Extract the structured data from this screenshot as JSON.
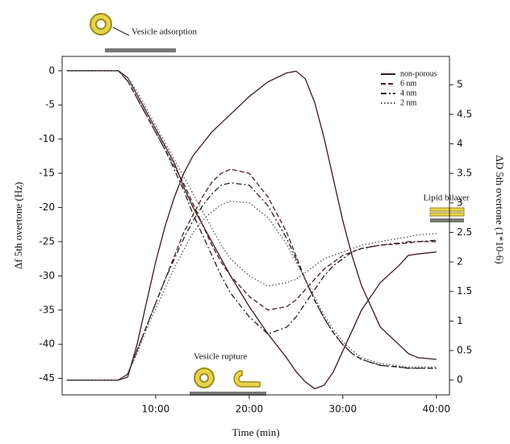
{
  "chart_data": {
    "type": "line",
    "xlabel": "Time (min)",
    "ylabel": "Δf 5th overtone (Hz)",
    "y2label": "ΔD 5th overtone (1*10-6)",
    "annotations": [
      "Vesicle adsorption",
      "Vesicle rupture",
      "Lipid bilayer"
    ],
    "x": [
      0.5,
      3,
      6,
      7,
      8,
      9,
      10,
      11,
      12,
      13,
      14,
      15,
      16,
      17,
      18,
      20,
      22,
      24,
      25,
      26,
      27,
      28,
      29,
      30,
      31,
      32,
      34,
      36,
      37,
      38,
      40
    ],
    "xlim": [
      0,
      41.4
    ],
    "xticks": [
      {
        "value": 10,
        "label": "10:00"
      },
      {
        "value": 20,
        "label": "20:00"
      },
      {
        "value": 30,
        "label": "30:00"
      },
      {
        "value": 40,
        "label": "40:00"
      }
    ],
    "ylim": [
      -47.4,
      2.1
    ],
    "yticks": [
      0,
      -5,
      -10,
      -15,
      -20,
      -25,
      -30,
      -35,
      -40,
      -45
    ],
    "y2lim": [
      -0.25,
      5.48
    ],
    "y2ticks": [
      0,
      0.5,
      1,
      1.5,
      2,
      2.5,
      3,
      3.5,
      4,
      4.5,
      5
    ],
    "legend": "upper right",
    "series": [
      {
        "name": "non-porous",
        "color": "#3a1c1c",
        "dash": "solid",
        "values": [
          0,
          0,
          0,
          -1,
          -3.5,
          -6,
          -8.5,
          -11,
          -13.5,
          -17,
          -20,
          -22.5,
          -25,
          -27.5,
          -30,
          -34.5,
          -38.5,
          -42,
          -44,
          -45.5,
          -46.5,
          -46,
          -44,
          -41,
          -38,
          -35,
          -31,
          -28.5,
          -27,
          -26.8,
          -26.5
        ]
      },
      {
        "name": "6 nm",
        "color": "#4a1f1f",
        "dash": "dashed",
        "values": [
          0,
          0,
          0,
          -1.5,
          -4,
          -6.5,
          -9,
          -11.5,
          -14,
          -16.5,
          -19.5,
          -22.5,
          -25.5,
          -28,
          -30,
          -33,
          -35,
          -34.5,
          -33.5,
          -32,
          -30.5,
          -29,
          -28,
          -27,
          -26.5,
          -26,
          -25.5,
          -25.3,
          -25.2,
          -25,
          -25
        ]
      },
      {
        "name": "4 nm",
        "color": "#222222",
        "dash": "dashdot",
        "values": [
          0,
          0,
          0,
          -1.5,
          -4,
          -6.5,
          -9,
          -11.5,
          -14.5,
          -17.5,
          -21,
          -24,
          -27,
          -30,
          -32.5,
          -36,
          -38.5,
          -37.5,
          -36,
          -34,
          -32,
          -30,
          -28.5,
          -27.5,
          -26.5,
          -26,
          -25.5,
          -25.2,
          -25,
          -25,
          -24.8
        ]
      },
      {
        "name": "2 nm",
        "color": "#555555",
        "dash": "dotted",
        "values": [
          0,
          0,
          0,
          -1,
          -3,
          -5.5,
          -8,
          -10.5,
          -13,
          -15.5,
          -18,
          -20.5,
          -23,
          -25.5,
          -27.5,
          -30,
          -31.5,
          -31,
          -30.5,
          -29.5,
          -28.5,
          -27.5,
          -27,
          -26.5,
          -26,
          -25.5,
          -25,
          -24.5,
          -24.3,
          -24,
          -23.8
        ]
      },
      {
        "axis": "y2",
        "color": "#3a1c1c",
        "dash": "solid",
        "values": [
          0,
          0,
          0,
          0.05,
          0.6,
          1.3,
          2,
          2.6,
          3.1,
          3.5,
          3.8,
          4,
          4.2,
          4.35,
          4.5,
          4.8,
          5.05,
          5.2,
          5.23,
          5.1,
          4.7,
          4.1,
          3.4,
          2.7,
          2.1,
          1.6,
          0.9,
          0.6,
          0.45,
          0.38,
          0.35
        ]
      },
      {
        "axis": "y2",
        "color": "#4a1f1f",
        "dash": "dashed",
        "values": [
          0,
          0,
          0,
          0.1,
          0.5,
          0.9,
          1.3,
          1.7,
          2.1,
          2.5,
          2.8,
          3.1,
          3.35,
          3.5,
          3.57,
          3.5,
          3.1,
          2.5,
          2.1,
          1.7,
          1.35,
          1.05,
          0.8,
          0.6,
          0.45,
          0.35,
          0.25,
          0.22,
          0.2,
          0.2,
          0.2
        ]
      },
      {
        "axis": "y2",
        "color": "#222222",
        "dash": "dashdot",
        "values": [
          0,
          0,
          0,
          0.1,
          0.5,
          0.9,
          1.3,
          1.7,
          2.05,
          2.4,
          2.7,
          2.95,
          3.15,
          3.3,
          3.34,
          3.3,
          2.95,
          2.4,
          2.05,
          1.7,
          1.35,
          1.05,
          0.8,
          0.6,
          0.45,
          0.35,
          0.25,
          0.22,
          0.2,
          0.2,
          0.2
        ]
      },
      {
        "axis": "y2",
        "color": "#555555",
        "dash": "dotted",
        "values": [
          0,
          0,
          0,
          0.1,
          0.45,
          0.85,
          1.2,
          1.55,
          1.9,
          2.2,
          2.5,
          2.7,
          2.85,
          2.97,
          3.03,
          3,
          2.75,
          2.3,
          2,
          1.7,
          1.4,
          1.1,
          0.85,
          0.65,
          0.5,
          0.38,
          0.28,
          0.24,
          0.22,
          0.22,
          0.22
        ]
      }
    ]
  }
}
